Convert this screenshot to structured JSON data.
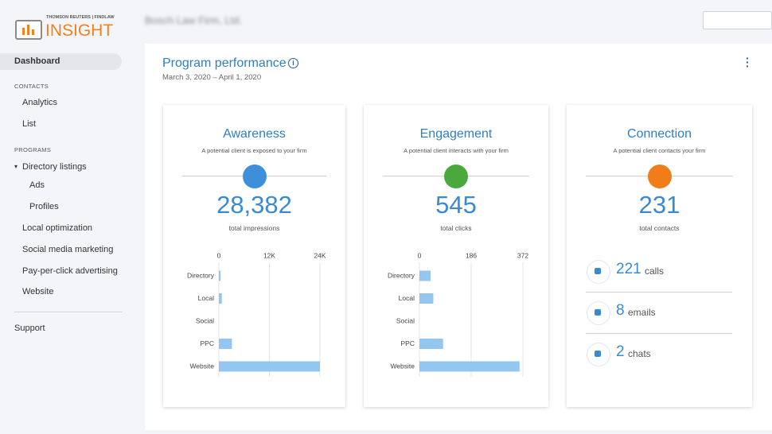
{
  "brand": {
    "top": "THOMSON REUTERS | FINDLAW",
    "name": "INSIGHT"
  },
  "firm": "Bosch Law Firm, Ltd.",
  "sidebar": {
    "dashboard": "Dashboard",
    "contacts": {
      "heading": "CONTACTS",
      "items": [
        "Analytics",
        "List"
      ]
    },
    "programs": {
      "heading": "PROGRAMS",
      "directory": {
        "label": "Directory listings",
        "items": [
          "Ads",
          "Profiles"
        ]
      },
      "items": [
        "Local optimization",
        "Social media marketing",
        "Pay-per-click advertising",
        "Website"
      ]
    },
    "support": "Support"
  },
  "header": {
    "title": "Program performance",
    "dates": "March 3, 2020 – April 1, 2020"
  },
  "cards": [
    {
      "title": "Awareness",
      "subtitle": "A potential client is exposed to your firm",
      "total": "28,382",
      "total_label": "total impressions",
      "chart": {
        "type": "bar",
        "horizontal": true,
        "categories": [
          "Directory",
          "Local",
          "Social",
          "PPC",
          "Website"
        ],
        "values": [
          400,
          700,
          0,
          3100,
          24000
        ],
        "xlim": [
          0,
          24000
        ],
        "xticks": [
          0,
          {
            "value": 12000,
            "label": "12K"
          },
          {
            "value": 24000,
            "label": "24K"
          }
        ],
        "color": "#93c6f1"
      }
    },
    {
      "title": "Engagement",
      "subtitle": "A potential client interacts with your firm",
      "total": "545",
      "total_label": "total clicks",
      "chart": {
        "type": "bar",
        "horizontal": true,
        "categories": [
          "Directory",
          "Local",
          "Social",
          "PPC",
          "Website"
        ],
        "values": [
          40,
          50,
          0,
          85,
          360
        ],
        "xlim": [
          0,
          372
        ],
        "xticks": [
          0,
          186,
          372
        ],
        "color": "#93c6f1"
      }
    },
    {
      "title": "Connection",
      "subtitle": "A potential client contacts your firm",
      "total": "231",
      "total_label": "total contacts",
      "items": [
        {
          "value": "221",
          "unit": "calls"
        },
        {
          "value": "8",
          "unit": "emails"
        },
        {
          "value": "2",
          "unit": "chats"
        }
      ]
    }
  ]
}
